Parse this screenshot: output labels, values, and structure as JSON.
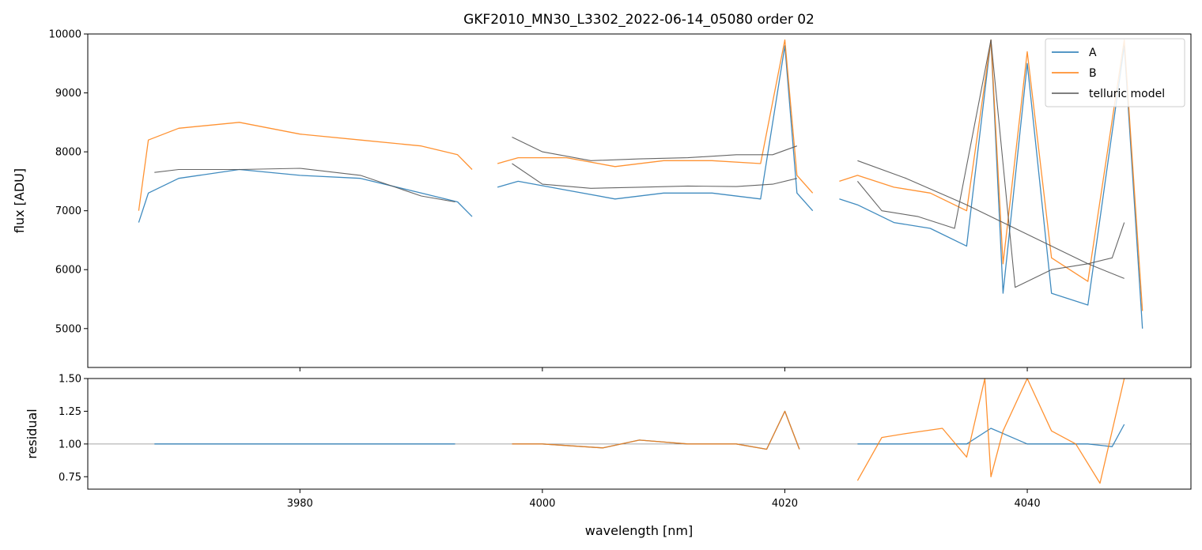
{
  "chart_data": [
    {
      "type": "line",
      "panel": "spectrum",
      "title": "GKF2010_MN30_L3302_2022-06-14_05080  order 02",
      "xlabel": "",
      "ylabel": "flux [ADU]",
      "xlim": [
        3962.5,
        4053.5
      ],
      "ylim": [
        4340,
        10000
      ],
      "yticks": [
        5000,
        6000,
        7000,
        8000,
        9000,
        10000
      ],
      "ytick_labels": [
        "5000",
        "6000",
        "7000",
        "8000",
        "9000",
        "10000"
      ],
      "xticks": [
        3980,
        4000,
        4020,
        4040
      ],
      "grid": false,
      "legend": {
        "position": "top-right",
        "entries": [
          {
            "label": "A",
            "color": "#1f77b4"
          },
          {
            "label": "B",
            "color": "#ff7f0e"
          },
          {
            "label": "telluric model",
            "color": "#555555"
          }
        ]
      },
      "series": [
        {
          "name": "A",
          "color": "#1f77b4",
          "segments": [
            {
              "x": [
                3966.7,
                3967.5,
                3970,
                3975,
                3980,
                3985,
                3990,
                3993,
                3994.2
              ],
              "y": [
                6800,
                7300,
                7550,
                7700,
                7600,
                7550,
                7300,
                7150,
                6900
              ]
            },
            {
              "x": [
                3996.3,
                3998,
                4002,
                4006,
                4010,
                4014,
                4018,
                4020,
                4021,
                4022.3
              ],
              "y": [
                7400,
                7500,
                7350,
                7200,
                7300,
                7300,
                7200,
                9800,
                7300,
                7000
              ]
            },
            {
              "x": [
                4024.5,
                4026,
                4029,
                4032,
                4035,
                4037,
                4038,
                4040,
                4042,
                4045,
                4048,
                4049.5
              ],
              "y": [
                7200,
                7100,
                6800,
                6700,
                6400,
                9900,
                5600,
                9500,
                5600,
                5400,
                9800,
                5000
              ]
            }
          ]
        },
        {
          "name": "B",
          "color": "#ff7f0e",
          "segments": [
            {
              "x": [
                3966.7,
                3967.5,
                3970,
                3975,
                3980,
                3985,
                3990,
                3993,
                3994.2
              ],
              "y": [
                7000,
                8200,
                8400,
                8500,
                8300,
                8200,
                8100,
                7950,
                7700
              ]
            },
            {
              "x": [
                3996.3,
                3998,
                4002,
                4006,
                4010,
                4014,
                4018,
                4020,
                4021,
                4022.3
              ],
              "y": [
                7800,
                7900,
                7900,
                7750,
                7850,
                7850,
                7800,
                9900,
                7600,
                7300
              ]
            },
            {
              "x": [
                4024.5,
                4026,
                4029,
                4032,
                4035,
                4037,
                4038,
                4040,
                4042,
                4045,
                4048,
                4049.5
              ],
              "y": [
                7500,
                7600,
                7400,
                7300,
                7000,
                9900,
                6100,
                9700,
                6200,
                5800,
                9900,
                5300
              ]
            }
          ]
        },
        {
          "name": "telluric model",
          "color": "#555555",
          "segments": [
            {
              "x": [
                3968,
                3970,
                3975,
                3980,
                3985,
                3990,
                3992.8
              ],
              "y": [
                7650,
                7700,
                7700,
                7720,
                7600,
                7250,
                7150
              ]
            },
            {
              "x": [
                3997.5,
                4000,
                4004,
                4008,
                4012,
                4016,
                4019,
                4021
              ],
              "y": [
                7800,
                7450,
                7380,
                7400,
                7420,
                7410,
                7450,
                7550
              ]
            },
            {
              "x": [
                3997.5,
                4000,
                4004,
                4008,
                4012,
                4016,
                4019,
                4021
              ],
              "y": [
                8250,
                8000,
                7850,
                7880,
                7900,
                7950,
                7950,
                8100
              ]
            },
            {
              "x": [
                4026,
                4030,
                4035,
                4040,
                4045,
                4048
              ],
              "y": [
                7850,
                7550,
                7100,
                6600,
                6100,
                5850
              ]
            },
            {
              "x": [
                4026,
                4028,
                4031,
                4034,
                4037,
                4039,
                4042,
                4045,
                4047,
                4048
              ],
              "y": [
                7500,
                7000,
                6900,
                6700,
                9900,
                5700,
                6000,
                6100,
                6200,
                6800
              ]
            }
          ]
        }
      ]
    },
    {
      "type": "line",
      "panel": "residual",
      "xlabel": "wavelength [nm]",
      "ylabel": "residual",
      "xlim": [
        3962.5,
        4053.5
      ],
      "ylim": [
        0.655,
        1.5
      ],
      "yticks": [
        0.75,
        1.0,
        1.25,
        1.5
      ],
      "ytick_labels": [
        "0.75",
        "1.00",
        "1.25",
        "1.50"
      ],
      "xticks": [
        3980,
        4000,
        4020,
        4040
      ],
      "xtick_labels": [
        "3980",
        "4000",
        "4020",
        "4040"
      ],
      "reference_line": 1.0,
      "grid": false,
      "series": [
        {
          "name": "A",
          "color": "#1f77b4",
          "segments": [
            {
              "x": [
                3968,
                3975,
                3980,
                3985,
                3990,
                3992.8
              ],
              "y": [
                1.0,
                1.0,
                1.0,
                1.0,
                1.0,
                1.0
              ]
            },
            {
              "x": [
                3997.5,
                4000,
                4005,
                4008,
                4012,
                4016,
                4018.5,
                4020,
                4021.2
              ],
              "y": [
                1.0,
                1.0,
                0.97,
                1.03,
                1.0,
                1.0,
                0.96,
                1.25,
                0.96
              ]
            },
            {
              "x": [
                4026,
                4030,
                4035,
                4037,
                4040,
                4045,
                4047,
                4048
              ],
              "y": [
                1.0,
                1.0,
                1.0,
                1.12,
                1.0,
                1.0,
                0.98,
                1.15
              ]
            }
          ]
        },
        {
          "name": "B",
          "color": "#ff7f0e",
          "segments": [
            {
              "x": [
                3997.5,
                4000,
                4005,
                4008,
                4012,
                4016,
                4018.5,
                4020,
                4021.2
              ],
              "y": [
                1.0,
                1.0,
                0.97,
                1.03,
                1.0,
                1.0,
                0.96,
                1.25,
                0.96
              ]
            },
            {
              "x": [
                4026,
                4028,
                4030,
                4033,
                4035,
                4036.5,
                4037,
                4038,
                4040,
                4042,
                4044,
                4046,
                4048
              ],
              "y": [
                0.72,
                1.05,
                1.08,
                1.12,
                0.9,
                1.5,
                0.75,
                1.1,
                1.5,
                1.1,
                1.0,
                0.7,
                1.5
              ]
            }
          ]
        }
      ]
    }
  ]
}
